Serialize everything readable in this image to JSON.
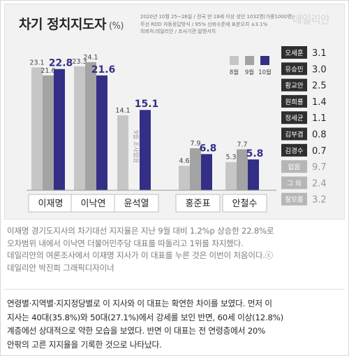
{
  "header": {
    "title": "차기 정치지도자",
    "unit": "(%)",
    "meta": [
      "2020년 10월 25~26일 / 전국 만 18세 이상 성인 1032명(가중1000명)",
      "무선 RDD 자동응답방식 / 95% 신뢰수준에 표본오차 ±3.1%",
      "의뢰처:데일리안 / 조사기관:알앤서치"
    ],
    "logo": "데일리안"
  },
  "chart_data": {
    "type": "bar",
    "title": "차기 정치지도자",
    "ylabel": "(%)",
    "ylim": [
      0,
      25
    ],
    "categories": [
      "이재명",
      "이낙연",
      "윤석열",
      "홍준표",
      "안철수"
    ],
    "series": [
      {
        "name": "8월",
        "color": "#c6c6c6",
        "values": [
          23.1,
          23.3,
          14.1,
          4.6,
          5.3
        ]
      },
      {
        "name": "9월",
        "color": "#a3a3a3",
        "values": [
          21.6,
          24.1,
          null,
          7.9,
          7.7
        ]
      },
      {
        "name": "10월",
        "color": "#332f86",
        "values": [
          22.8,
          21.6,
          15.1,
          6.8,
          5.8
        ]
      }
    ],
    "annotations": [
      {
        "category": "윤석열",
        "series": "9월",
        "text": "9월 조사없음"
      }
    ],
    "legend_position": "top-right",
    "grid": false,
    "side_list": [
      {
        "name": "오세훈",
        "value": "3.1",
        "active": true
      },
      {
        "name": "유승민",
        "value": "3.0",
        "active": true
      },
      {
        "name": "황교안",
        "value": "2.5",
        "active": true
      },
      {
        "name": "원희룡",
        "value": "1.4",
        "active": true
      },
      {
        "name": "정세균",
        "value": "1.1",
        "active": true
      },
      {
        "name": "김부겸",
        "value": "0.8",
        "active": true
      },
      {
        "name": "김경수",
        "value": "0.7",
        "active": true
      },
      {
        "name": "없음",
        "value": "9.7",
        "active": false
      },
      {
        "name": "그 외",
        "value": "2.4",
        "active": false
      },
      {
        "name": "잘모름",
        "value": "3.2",
        "active": false
      }
    ],
    "colors": {
      "active_box": "#2e2e2e",
      "inactive_box": "#b6b6b6",
      "active_value": "#262626",
      "inactive_value": "#999999"
    }
  },
  "caption": {
    "lines": [
      "이재명 경기도지사의 차기대선 지지율은 지난 9월 대비 1.2%p 상승한 22.8%로",
      "오차범위 내에서 이낙연 더불어민주당 대표를 따돌리고 1위를 차지했다.",
      "데일리안의 여론조사에서 이재명 지사가 이 대표를 누른 것은 이번이 처음이다.ⓒ",
      "데일리안 박진희 그래픽디자이너"
    ]
  },
  "body": {
    "lines": [
      "연령별·지역별·지지정당별로 이 지사와 이 대표는 확연한 차이를 보였다. 먼저 이",
      "지사는 40대(35.8%)와 50대(27.1%)에서 강세를 보인 반면, 60세 이상(12.8%)",
      "계층에선 상대적으로 약한 모습을 보였다. 반면 이 대표는 전 연령층에서 20%",
      "안팎의 고른 지지율을 기록한 것으로 나타났다."
    ]
  }
}
